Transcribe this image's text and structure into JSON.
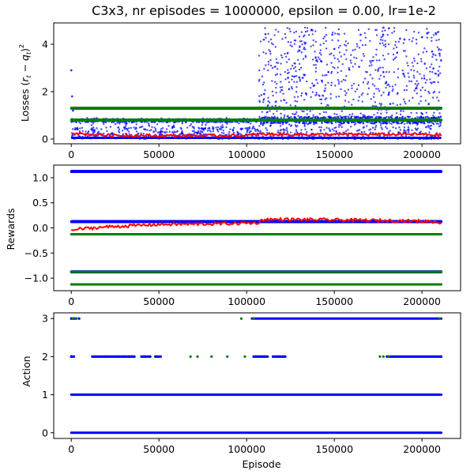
{
  "figure": {
    "title": "C3x3, nr episodes = 1000000, epsilon = 0.00, lr=1e-2",
    "xlabel": "Episode"
  },
  "colors": {
    "blue": "#0000ff",
    "red": "#ff0000",
    "green": "#007f00",
    "axes": "#000000",
    "background": "#ffffff"
  },
  "chart_data": [
    {
      "type": "scatter",
      "title": "C3x3, nr episodes = 1000000, epsilon = 0.00, lr=1e-2",
      "xlabel": "",
      "ylabel": "Losses (r_t - q_t)^2",
      "xlim": [
        -10000,
        222000
      ],
      "ylim": [
        -0.2,
        4.9
      ],
      "xticks": [
        0,
        50000,
        100000,
        150000,
        200000
      ],
      "xtick_labels": [
        "0",
        "50000",
        "100000",
        "150000",
        "200000"
      ],
      "yticks": [
        0,
        2,
        4
      ],
      "ytick_labels": [
        "0",
        "2",
        "4"
      ],
      "grid": false,
      "series": [
        {
          "color": "#0000ff",
          "marker": "dot",
          "description_points": [
            {
              "x": 0,
              "y": 2.9
            },
            {
              "x": 500,
              "y": 1.8
            },
            {
              "x": 1000,
              "y": 1.2
            },
            {
              "x": 20000,
              "y": 0.85
            },
            {
              "x": 60000,
              "y": 0.8
            },
            {
              "x": 105000,
              "y": 0.75
            },
            {
              "x": 110000,
              "y": 1.9
            },
            {
              "x": 130000,
              "y": 2.6
            },
            {
              "x": 150000,
              "y": 3.8
            },
            {
              "x": 165000,
              "y": 4.4
            },
            {
              "x": 178000,
              "y": 4.7
            },
            {
              "x": 190000,
              "y": 4.2
            },
            {
              "x": 200000,
              "y": 4.3
            },
            {
              "x": 210000,
              "y": 3.6
            }
          ],
          "bands": [
            {
              "x_start": 0,
              "x_end": 107000,
              "y_low": 0.0,
              "y_high": 0.9
            },
            {
              "x_start": 107000,
              "x_end": 211000,
              "y_low": 0.0,
              "y_high": 4.7
            }
          ]
        },
        {
          "color": "#ff0000",
          "marker": "line-dots",
          "points": [
            {
              "x": 0,
              "y": 0.3
            },
            {
              "x": 5000,
              "y": 0.22
            },
            {
              "x": 20000,
              "y": 0.16
            },
            {
              "x": 50000,
              "y": 0.14
            },
            {
              "x": 100000,
              "y": 0.15
            },
            {
              "x": 108000,
              "y": 0.2
            },
            {
              "x": 150000,
              "y": 0.19
            },
            {
              "x": 200000,
              "y": 0.2
            },
            {
              "x": 211000,
              "y": 0.16
            }
          ]
        },
        {
          "color": "#007f00",
          "marker": "horizontal-band",
          "levels": [
            1.3,
            0.8
          ],
          "x_start": 0,
          "x_end": 211000
        }
      ]
    },
    {
      "type": "scatter",
      "xlabel": "",
      "ylabel": "Rewards",
      "xlim": [
        -10000,
        222000
      ],
      "ylim": [
        -1.25,
        1.25
      ],
      "xticks": [
        0,
        50000,
        100000,
        150000,
        200000
      ],
      "xtick_labels": [
        "0",
        "50000",
        "100000",
        "150000",
        "200000"
      ],
      "yticks": [
        -1.0,
        -0.5,
        0.0,
        0.5,
        1.0
      ],
      "ytick_labels": [
        "−1.0",
        "−0.5",
        "0.0",
        "0.5",
        "1.0"
      ],
      "grid": false,
      "series": [
        {
          "color": "#0000ff",
          "marker": "horizontal-band",
          "levels": [
            1.125,
            0.125,
            -0.875
          ],
          "x_start": 0,
          "x_end": 211000
        },
        {
          "color": "#007f00",
          "marker": "horizontal-band",
          "levels": [
            -0.125,
            -0.875,
            -1.125
          ],
          "x_start": 0,
          "x_end": 211000
        },
        {
          "color": "#ff0000",
          "marker": "line-dots",
          "points": [
            {
              "x": 0,
              "y": -0.05
            },
            {
              "x": 5000,
              "y": -0.02
            },
            {
              "x": 20000,
              "y": 0.02
            },
            {
              "x": 50000,
              "y": 0.07
            },
            {
              "x": 80000,
              "y": 0.08
            },
            {
              "x": 106000,
              "y": 0.1
            },
            {
              "x": 110000,
              "y": 0.17
            },
            {
              "x": 150000,
              "y": 0.16
            },
            {
              "x": 190000,
              "y": 0.14
            },
            {
              "x": 205000,
              "y": 0.13
            },
            {
              "x": 211000,
              "y": 0.1
            }
          ]
        }
      ]
    },
    {
      "type": "scatter",
      "xlabel": "Episode",
      "ylabel": "Action",
      "xlim": [
        -10000,
        222000
      ],
      "ylim": [
        -0.15,
        3.15
      ],
      "xticks": [
        0,
        50000,
        100000,
        150000,
        200000
      ],
      "xtick_labels": [
        "0",
        "50000",
        "100000",
        "150000",
        "200000"
      ],
      "yticks": [
        0,
        1,
        2,
        3
      ],
      "ytick_labels": [
        "0",
        "1",
        "2",
        "3"
      ],
      "grid": false,
      "series": [
        {
          "color": "#0000ff",
          "marker": "dot",
          "level": 0,
          "x_ranges": [
            [
              0,
              211000
            ]
          ]
        },
        {
          "color": "#0000ff",
          "marker": "dot",
          "level": 1,
          "x_ranges": [
            [
              0,
              211000
            ]
          ]
        },
        {
          "color": "#0000ff",
          "marker": "dot",
          "level": 2,
          "x_ranges": [
            [
              0,
              500
            ],
            [
              12000,
              36000
            ],
            [
              40000,
              45000
            ],
            [
              48000,
              50000
            ],
            [
              104000,
              112000
            ],
            [
              115000,
              122000
            ],
            [
              180000,
              211000
            ]
          ],
          "x_points": [
            100,
            1500,
            20000,
            25000,
            27000,
            30000,
            33000,
            35000,
            42000,
            45000,
            48000,
            51000,
            106000,
            108000,
            110000,
            118000,
            122000
          ]
        },
        {
          "color": "#007f00",
          "marker": "dot",
          "level": 2,
          "x_points": [
            68000,
            72000,
            80000,
            89000,
            99000,
            176000,
            178000,
            181000
          ]
        },
        {
          "color": "#0000ff",
          "marker": "dot",
          "level": 3,
          "x_ranges": [
            [
              103000,
              211000
            ]
          ],
          "x_points": [
            0,
            500,
            1500,
            2500,
            4500
          ]
        },
        {
          "color": "#007f00",
          "marker": "dot",
          "level": 3,
          "x_points": [
            1000,
            3000,
            97000,
            104000,
            210000
          ]
        }
      ]
    }
  ]
}
